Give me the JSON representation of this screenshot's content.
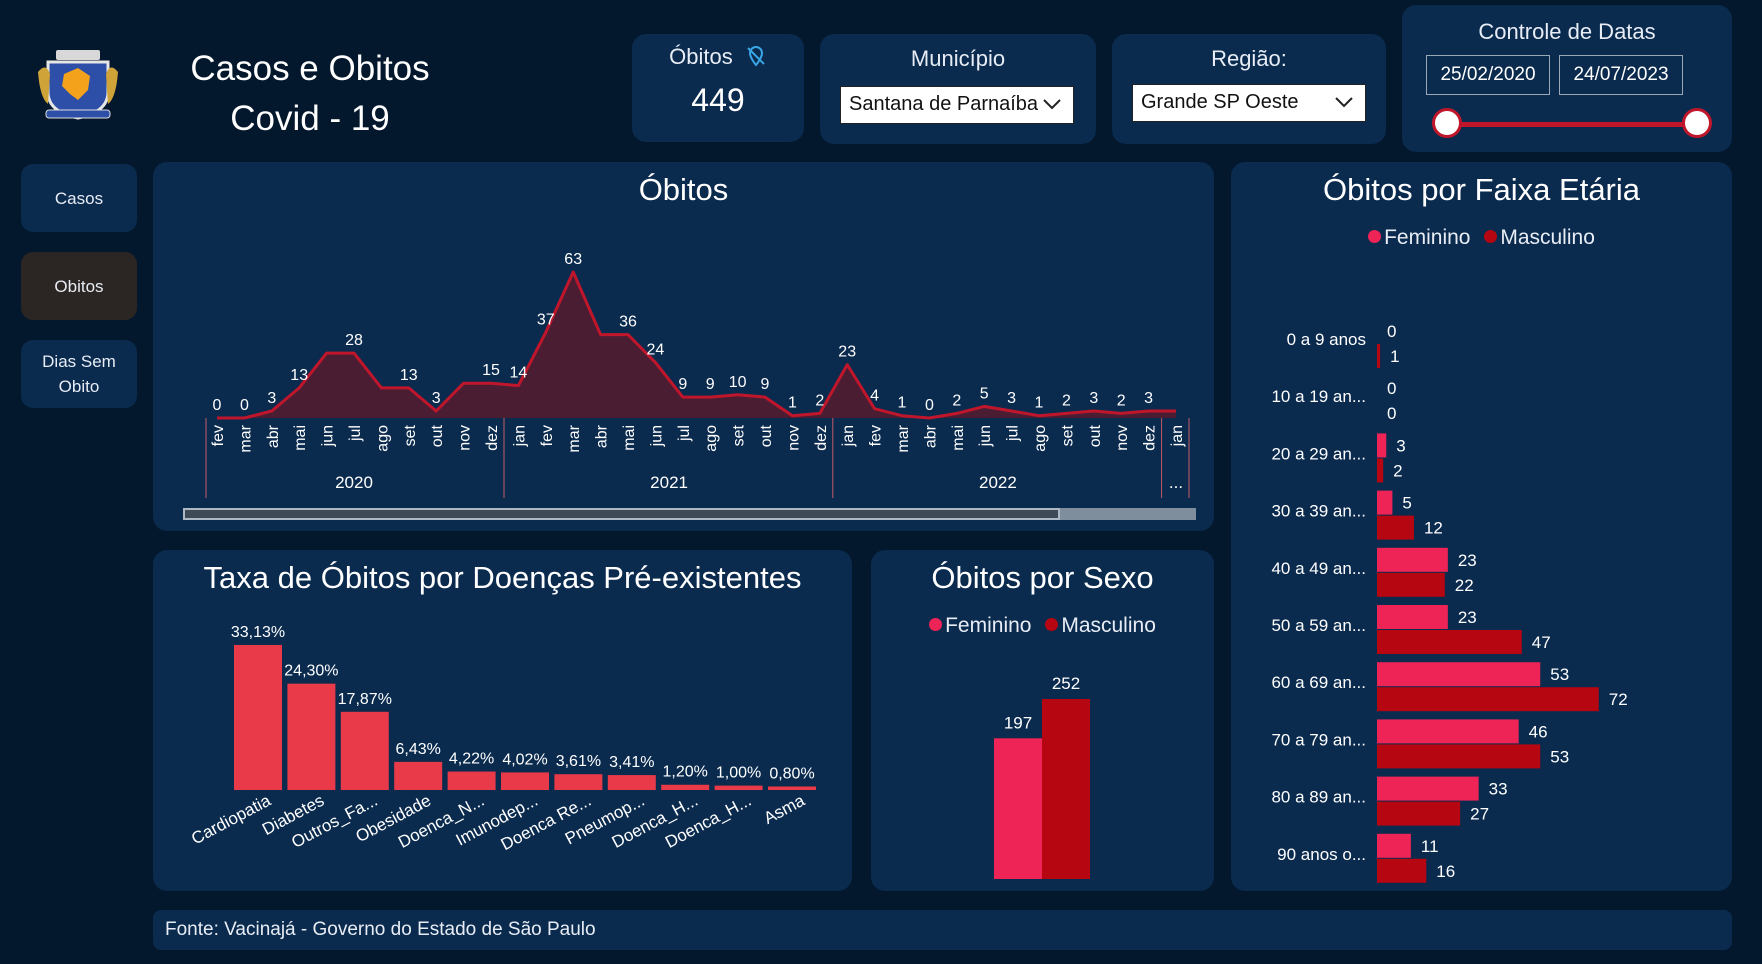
{
  "header": {
    "title_line1": "Casos e Obitos",
    "title_line2": "Covid - 19"
  },
  "nav": {
    "items": [
      {
        "label": "Casos"
      },
      {
        "label": "Obitos"
      },
      {
        "label": "Dias Sem Obito"
      }
    ]
  },
  "kpi": {
    "label": "Óbitos",
    "value": "449",
    "icon": "location-off-icon"
  },
  "filters": {
    "municipio_label": "Município",
    "municipio_value": "Santana de Parnaíba",
    "regiao_label": "Região:",
    "regiao_value": "Grande SP Oeste",
    "datas_label": "Controle de Datas",
    "date_start": "25/02/2020",
    "date_end": "24/07/2023"
  },
  "footer": {
    "source": "Fonte: Vacinajá - Governo do Estado de São Paulo"
  },
  "colors": {
    "background": "#04182d",
    "card": "#0a2a4e",
    "line": "#c0162c",
    "feminino": "#ee2356",
    "masculino": "#b50612",
    "disease_bar": "#e83a48"
  },
  "chart_data": [
    {
      "type": "area",
      "title": "Óbitos",
      "x": [
        "fev",
        "mar",
        "abr",
        "mai",
        "jun",
        "jul",
        "ago",
        "set",
        "out",
        "nov",
        "dez",
        "jan",
        "fev",
        "mar",
        "abr",
        "mai",
        "jun",
        "jul",
        "ago",
        "set",
        "out",
        "nov",
        "dez",
        "jan",
        "fev",
        "mar",
        "abr",
        "mai",
        "jun",
        "jul",
        "ago",
        "set",
        "out",
        "nov",
        "dez",
        "jan"
      ],
      "year_groups": [
        {
          "label": "2020",
          "count": 11
        },
        {
          "label": "2021",
          "count": 12
        },
        {
          "label": "2022",
          "count": 12
        },
        {
          "label": "...",
          "count": 1
        }
      ],
      "values": [
        0,
        0,
        3,
        13,
        28,
        28,
        13,
        13,
        3,
        15,
        15,
        14,
        37,
        63,
        36,
        36,
        24,
        9,
        9,
        10,
        9,
        1,
        2,
        23,
        4,
        1,
        0,
        2,
        5,
        3,
        1,
        2,
        3,
        2,
        3,
        3
      ],
      "data_labels": [
        "0",
        "0",
        "3",
        "13",
        "",
        "28",
        "",
        "13",
        "3",
        "",
        "15",
        "14",
        "37",
        "63",
        "",
        "36",
        "24",
        "9",
        "9",
        "10",
        "9",
        "1",
        "2",
        "23",
        "4",
        "1",
        "0",
        "2",
        "5",
        "3",
        "1",
        "2",
        "3",
        "2",
        "3",
        ""
      ],
      "ylim": [
        0,
        63
      ]
    },
    {
      "type": "bar",
      "title": "Taxa de Óbitos por Doenças Pré-existentes",
      "categories": [
        "Cardiopatia",
        "Diabetes",
        "Outros_Fa...",
        "Obesidade",
        "Doenca_N...",
        "Imunodep...",
        "Doenca Re...",
        "Pneumop...",
        "Doenca_H...",
        "Doenca_H...",
        "Asma"
      ],
      "values": [
        33.13,
        24.3,
        17.87,
        6.43,
        4.22,
        4.02,
        3.61,
        3.41,
        1.2,
        1.0,
        0.8
      ],
      "value_labels": [
        "33,13%",
        "24,30%",
        "17,87%",
        "6,43%",
        "4,22%",
        "4,02%",
        "3,61%",
        "3,41%",
        "1,20%",
        "1,00%",
        "0,80%"
      ]
    },
    {
      "type": "bar",
      "title": "Óbitos por Sexo",
      "legend": [
        "Feminino",
        "Masculino"
      ],
      "categories": [
        "Feminino",
        "Masculino"
      ],
      "values": [
        197,
        252
      ]
    },
    {
      "type": "bar",
      "orientation": "horizontal",
      "title": "Óbitos por Faixa Etária",
      "legend": [
        "Feminino",
        "Masculino"
      ],
      "categories": [
        "0 a 9 anos",
        "10 a 19 an...",
        "20 a 29 an...",
        "30 a 39 an...",
        "40 a 49 an...",
        "50 a 59 an...",
        "60 a 69 an...",
        "70 a 79 an...",
        "80 a 89 an...",
        "90 anos o..."
      ],
      "series": [
        {
          "name": "Feminino",
          "values": [
            0,
            0,
            3,
            5,
            23,
            23,
            53,
            46,
            33,
            11
          ]
        },
        {
          "name": "Masculino",
          "values": [
            1,
            0,
            2,
            12,
            22,
            47,
            72,
            53,
            27,
            16
          ]
        }
      ]
    }
  ]
}
